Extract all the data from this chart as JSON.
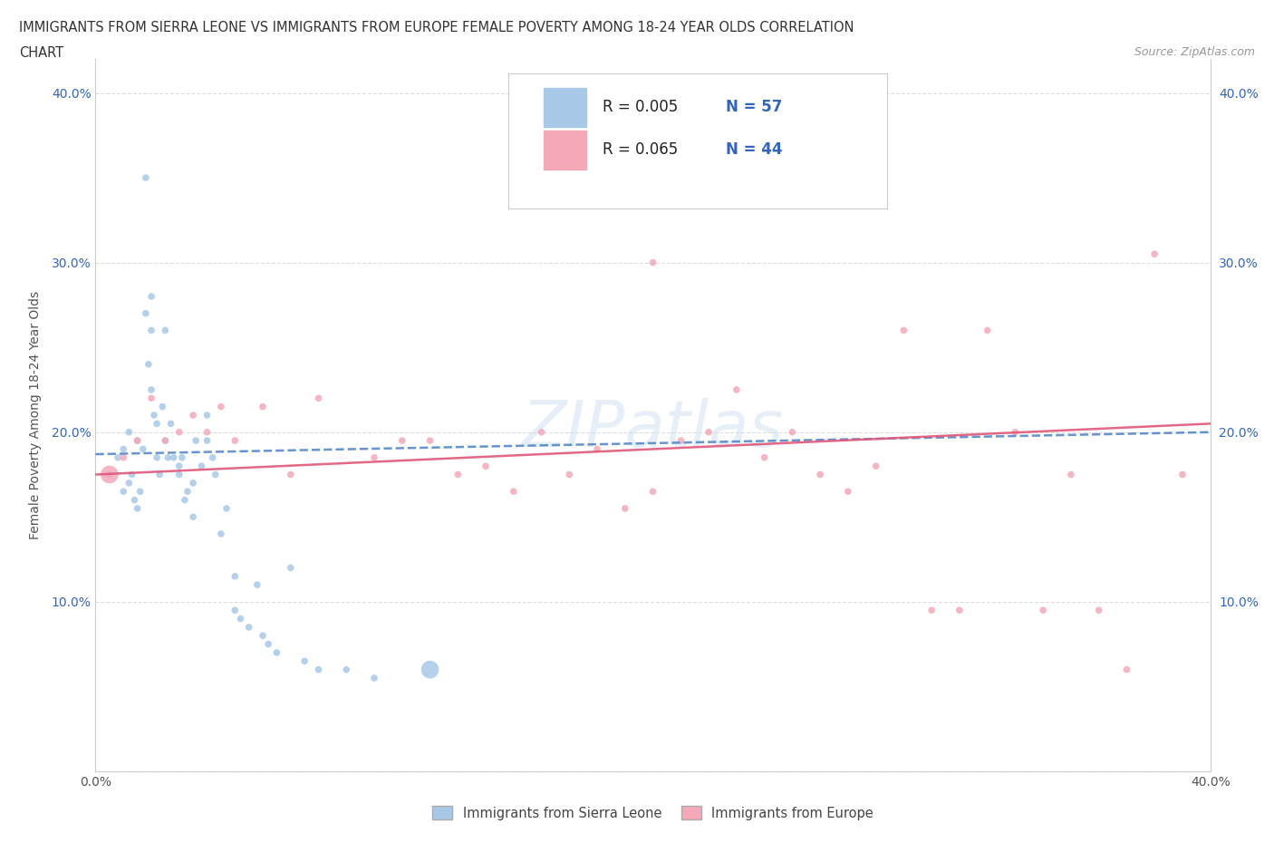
{
  "title_line1": "IMMIGRANTS FROM SIERRA LEONE VS IMMIGRANTS FROM EUROPE FEMALE POVERTY AMONG 18-24 YEAR OLDS CORRELATION",
  "title_line2": "CHART",
  "source": "Source: ZipAtlas.com",
  "ylabel": "Female Poverty Among 18-24 Year Olds",
  "xlim": [
    0.0,
    0.4
  ],
  "ylim": [
    0.0,
    0.42
  ],
  "sierra_leone_color": "#a8c8e8",
  "europe_color": "#f4a8b8",
  "sierra_leone_line_color": "#5588cc",
  "europe_line_color": "#e05878",
  "r_sierra": 0.005,
  "n_sierra": 57,
  "r_europe": 0.065,
  "n_europe": 44,
  "sierra_leone_x": [
    0.005,
    0.008,
    0.01,
    0.01,
    0.012,
    0.012,
    0.013,
    0.014,
    0.015,
    0.015,
    0.016,
    0.017,
    0.018,
    0.018,
    0.019,
    0.02,
    0.02,
    0.02,
    0.021,
    0.022,
    0.022,
    0.023,
    0.024,
    0.025,
    0.025,
    0.026,
    0.027,
    0.028,
    0.03,
    0.03,
    0.031,
    0.032,
    0.033,
    0.035,
    0.035,
    0.036,
    0.038,
    0.04,
    0.04,
    0.042,
    0.043,
    0.045,
    0.047,
    0.05,
    0.05,
    0.052,
    0.055,
    0.058,
    0.06,
    0.062,
    0.065,
    0.07,
    0.075,
    0.08,
    0.09,
    0.1,
    0.12
  ],
  "sierra_leone_y": [
    0.175,
    0.185,
    0.19,
    0.165,
    0.17,
    0.2,
    0.175,
    0.16,
    0.155,
    0.195,
    0.165,
    0.19,
    0.35,
    0.27,
    0.24,
    0.28,
    0.26,
    0.225,
    0.21,
    0.205,
    0.185,
    0.175,
    0.215,
    0.195,
    0.26,
    0.185,
    0.205,
    0.185,
    0.175,
    0.18,
    0.185,
    0.16,
    0.165,
    0.17,
    0.15,
    0.195,
    0.18,
    0.195,
    0.21,
    0.185,
    0.175,
    0.14,
    0.155,
    0.115,
    0.095,
    0.09,
    0.085,
    0.11,
    0.08,
    0.075,
    0.07,
    0.12,
    0.065,
    0.06,
    0.06,
    0.055,
    0.06
  ],
  "sierra_leone_sizes": [
    30,
    30,
    30,
    30,
    30,
    30,
    30,
    30,
    30,
    30,
    30,
    30,
    30,
    30,
    30,
    30,
    30,
    30,
    30,
    30,
    30,
    30,
    30,
    30,
    30,
    30,
    30,
    30,
    30,
    30,
    30,
    30,
    30,
    30,
    30,
    30,
    30,
    30,
    30,
    30,
    30,
    30,
    30,
    30,
    30,
    30,
    30,
    30,
    30,
    30,
    30,
    30,
    30,
    30,
    30,
    30,
    200
  ],
  "europe_x": [
    0.005,
    0.01,
    0.015,
    0.02,
    0.025,
    0.03,
    0.035,
    0.04,
    0.045,
    0.05,
    0.06,
    0.07,
    0.08,
    0.1,
    0.11,
    0.12,
    0.13,
    0.14,
    0.15,
    0.16,
    0.17,
    0.18,
    0.19,
    0.2,
    0.2,
    0.21,
    0.22,
    0.23,
    0.24,
    0.25,
    0.26,
    0.27,
    0.28,
    0.29,
    0.3,
    0.31,
    0.32,
    0.33,
    0.34,
    0.35,
    0.36,
    0.37,
    0.38,
    0.39
  ],
  "europe_y": [
    0.175,
    0.185,
    0.195,
    0.22,
    0.195,
    0.2,
    0.21,
    0.2,
    0.215,
    0.195,
    0.215,
    0.175,
    0.22,
    0.185,
    0.195,
    0.195,
    0.175,
    0.18,
    0.165,
    0.2,
    0.175,
    0.19,
    0.155,
    0.165,
    0.3,
    0.195,
    0.2,
    0.225,
    0.185,
    0.2,
    0.175,
    0.165,
    0.18,
    0.26,
    0.095,
    0.095,
    0.26,
    0.2,
    0.095,
    0.175,
    0.095,
    0.06,
    0.305,
    0.175
  ],
  "europe_sizes": [
    200,
    30,
    30,
    30,
    30,
    30,
    30,
    30,
    30,
    30,
    30,
    30,
    30,
    30,
    30,
    30,
    30,
    30,
    30,
    30,
    30,
    30,
    30,
    30,
    30,
    30,
    30,
    30,
    30,
    30,
    30,
    30,
    30,
    30,
    30,
    30,
    30,
    30,
    30,
    30,
    30,
    30,
    30,
    30
  ]
}
